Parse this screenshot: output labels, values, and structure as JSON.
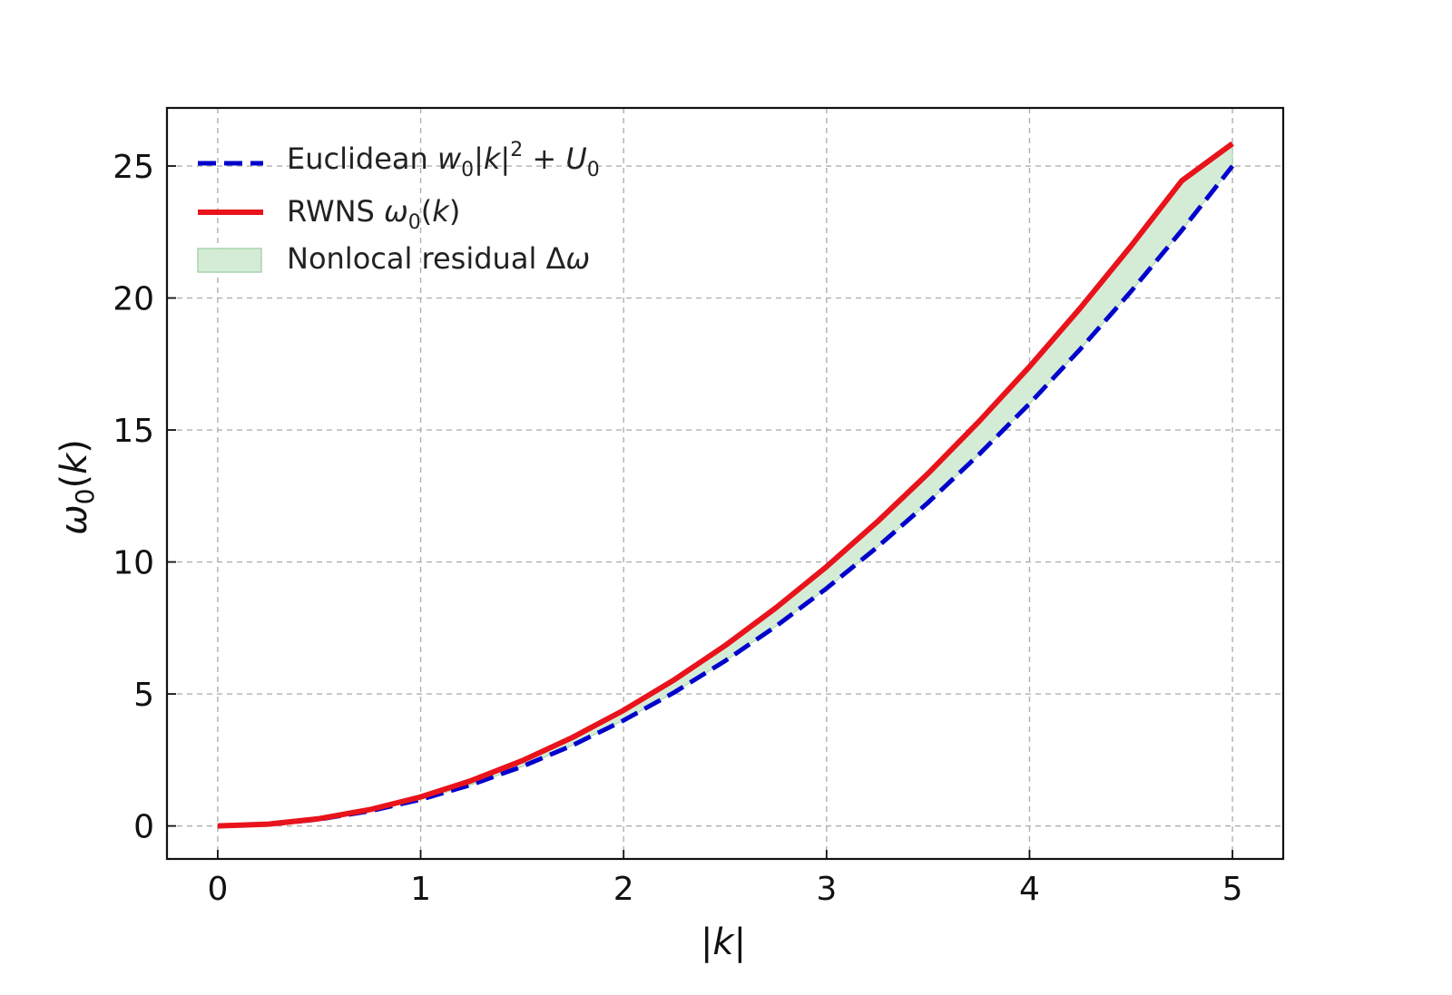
{
  "chart_data": {
    "type": "line",
    "title": "",
    "xlabel": "|k|",
    "ylabel": "ω0(k)",
    "xlim": [
      -0.25,
      5.25
    ],
    "ylim": [
      -1.25,
      27.2
    ],
    "xticks": [
      0,
      1,
      2,
      3,
      4,
      5
    ],
    "yticks": [
      0,
      5,
      10,
      15,
      20,
      25
    ],
    "grid": true,
    "legend_position": "top-left",
    "series": [
      {
        "name": "Euclidean w0|k|^2 + U0",
        "style": "dashed",
        "color": "#0000cc",
        "x": [
          0,
          0.25,
          0.5,
          0.75,
          1.0,
          1.25,
          1.5,
          1.75,
          2.0,
          2.25,
          2.5,
          2.75,
          3.0,
          3.25,
          3.5,
          3.75,
          4.0,
          4.25,
          4.5,
          4.75,
          5.0
        ],
        "y": [
          0,
          0.0625,
          0.25,
          0.5625,
          1.0,
          1.5625,
          2.25,
          3.0625,
          4.0,
          5.0625,
          6.25,
          7.5625,
          9.0,
          10.5625,
          12.25,
          14.0625,
          16.0,
          18.0625,
          20.25,
          22.5625,
          25.0
        ]
      },
      {
        "name": "RWNS ω0(k)",
        "style": "solid",
        "color": "#e8131b",
        "x": [
          0,
          0.25,
          0.5,
          0.75,
          1.0,
          1.25,
          1.5,
          1.75,
          2.0,
          2.25,
          2.5,
          2.75,
          3.0,
          3.25,
          3.5,
          3.75,
          4.0,
          4.25,
          4.5,
          4.75,
          5.0
        ],
        "y": [
          0,
          0.068,
          0.275,
          0.62,
          1.1,
          1.72,
          2.47,
          3.36,
          4.38,
          5.54,
          6.83,
          8.26,
          9.82,
          11.52,
          13.35,
          15.31,
          17.4,
          19.62,
          21.97,
          24.44,
          25.85
        ]
      }
    ],
    "fill_between": {
      "name": "Nonlocal residual Δω",
      "color": "#d4ecd6",
      "edge": "#a9d4ad",
      "between": [
        "Euclidean w0|k|^2 + U0",
        "RWNS ω0(k)"
      ]
    },
    "legend": [
      {
        "prefix": "Euclidean ",
        "math": "w",
        "sub": "0",
        "mid": "|k|",
        "sup": "2",
        "tail": " + U",
        "sub2": "0"
      },
      {
        "prefix": "RWNS ",
        "math": "ω",
        "sub": "0",
        "mid": "(k)"
      },
      {
        "prefix": "Nonlocal residual Δ",
        "math": "ω"
      }
    ]
  }
}
